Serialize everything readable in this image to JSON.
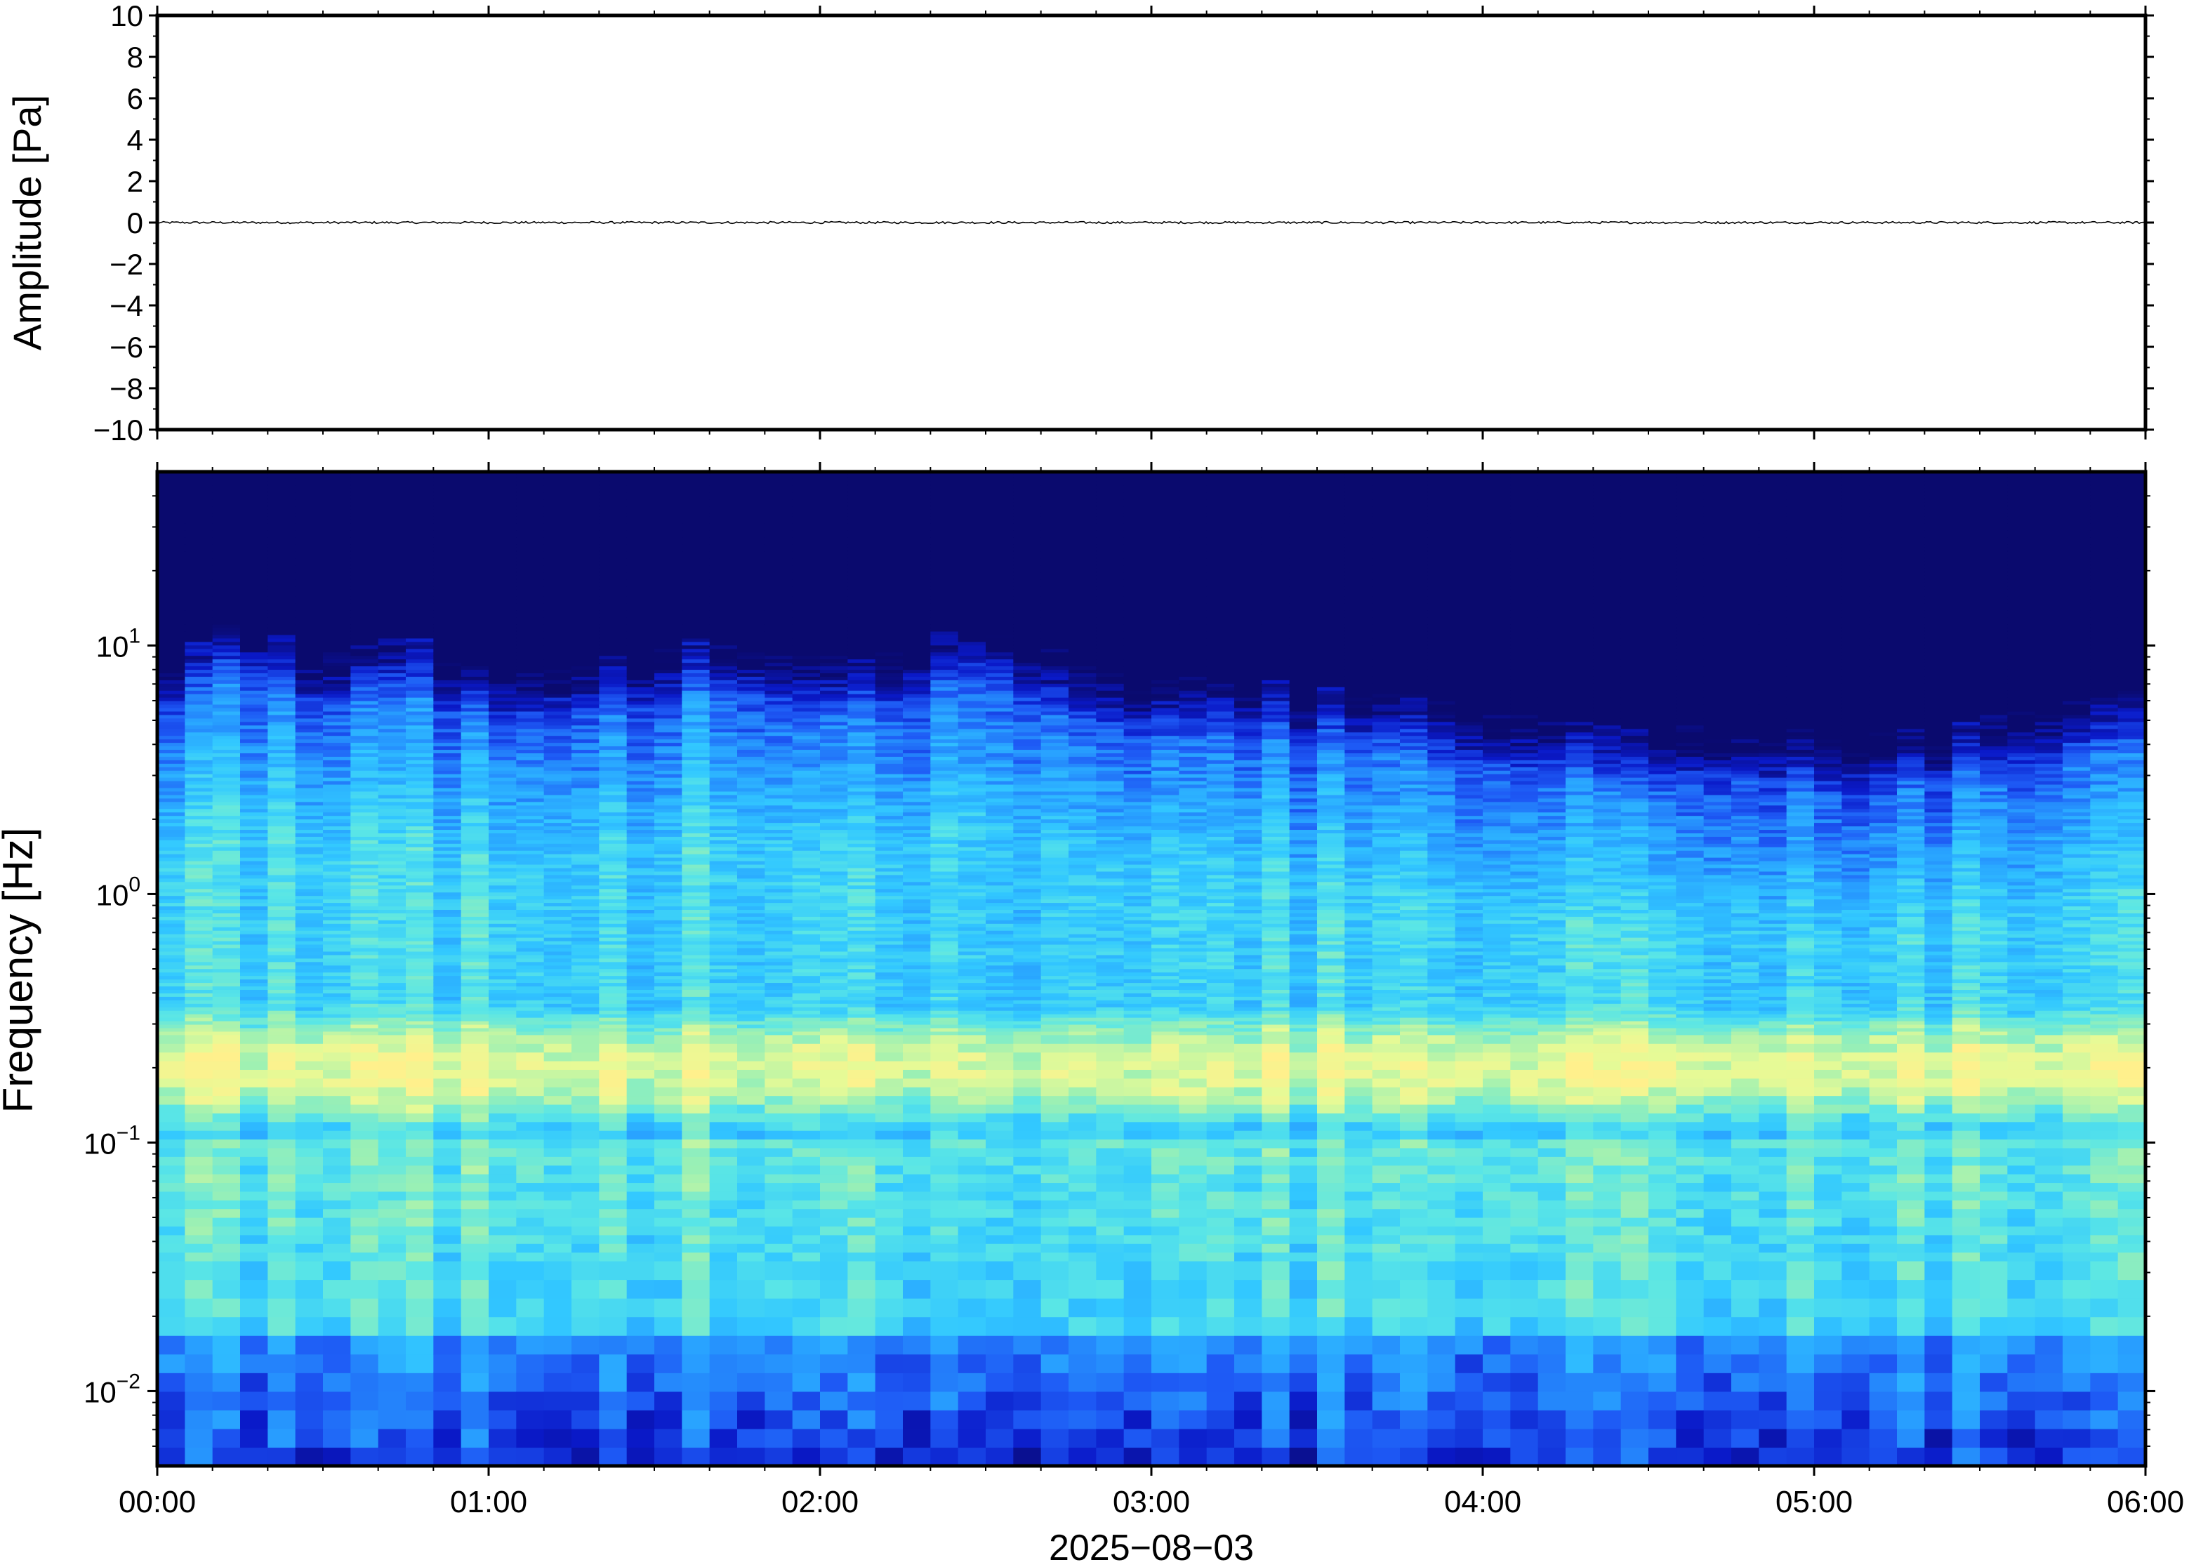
{
  "chart_data": [
    {
      "type": "line",
      "title": "",
      "xlabel": "",
      "ylabel": "Amplitude [Pa]",
      "ylim": [
        -10,
        10
      ],
      "yticks": [
        10,
        8,
        6,
        4,
        2,
        0,
        -2,
        -4,
        -6,
        -8,
        -10
      ],
      "ytick_labels": [
        "10",
        "8",
        "6",
        "4",
        "2",
        "0",
        "−2",
        "−4",
        "−6",
        "−8",
        "−10"
      ],
      "xlim_hours": [
        0,
        6
      ],
      "series": [
        {
          "values_description_free": true,
          "x_hours": [
            0,
            6
          ],
          "y": [
            0,
            0
          ],
          "noise_peak_pa": 0.05,
          "color": "#000000"
        }
      ],
      "grid": false
    },
    {
      "type": "heatmap",
      "title": "",
      "xlabel": "2025−08−03",
      "ylabel": "Frequency [Hz]",
      "y_scale": "log",
      "ylim_hz": [
        0.005,
        50
      ],
      "yticks_hz": [
        10,
        1,
        0.1,
        0.01
      ],
      "ytick_labels": [
        {
          "base": "10",
          "exp": "1"
        },
        {
          "base": "10",
          "exp": "0"
        },
        {
          "base": "10",
          "exp": "−1"
        },
        {
          "base": "10",
          "exp": "−2"
        }
      ],
      "xlim_hours": [
        0,
        6
      ],
      "xticks_hours": [
        0,
        1,
        2,
        3,
        4,
        5,
        6
      ],
      "xtick_labels": [
        "00:00",
        "01:00",
        "02:00",
        "03:00",
        "04:00",
        "05:00",
        "06:00"
      ],
      "colormap": [
        "#0a0a6e",
        "#0a19c8",
        "#1e5af5",
        "#28a0ff",
        "#32c8ff",
        "#5ae6e6",
        "#9bf0b4",
        "#e6fa96",
        "#fff08c"
      ],
      "upper_cutoff_hz_by_hour": [
        [
          0.0,
          7
        ],
        [
          0.25,
          12
        ],
        [
          0.5,
          8
        ],
        [
          0.75,
          10
        ],
        [
          1.0,
          7
        ],
        [
          1.25,
          8
        ],
        [
          1.5,
          9
        ],
        [
          1.75,
          10
        ],
        [
          2.0,
          8
        ],
        [
          2.25,
          9
        ],
        [
          2.5,
          12
        ],
        [
          2.75,
          8
        ],
        [
          3.0,
          6.5
        ],
        [
          3.25,
          7
        ],
        [
          3.5,
          6
        ],
        [
          3.75,
          6
        ],
        [
          4.0,
          5
        ],
        [
          4.25,
          4.5
        ],
        [
          4.5,
          4
        ],
        [
          4.75,
          4.5
        ],
        [
          5.0,
          4
        ],
        [
          5.25,
          4
        ],
        [
          5.5,
          4.5
        ],
        [
          5.75,
          5.5
        ],
        [
          6.0,
          6
        ]
      ],
      "microseism_peak_hz": 0.2
    }
  ]
}
